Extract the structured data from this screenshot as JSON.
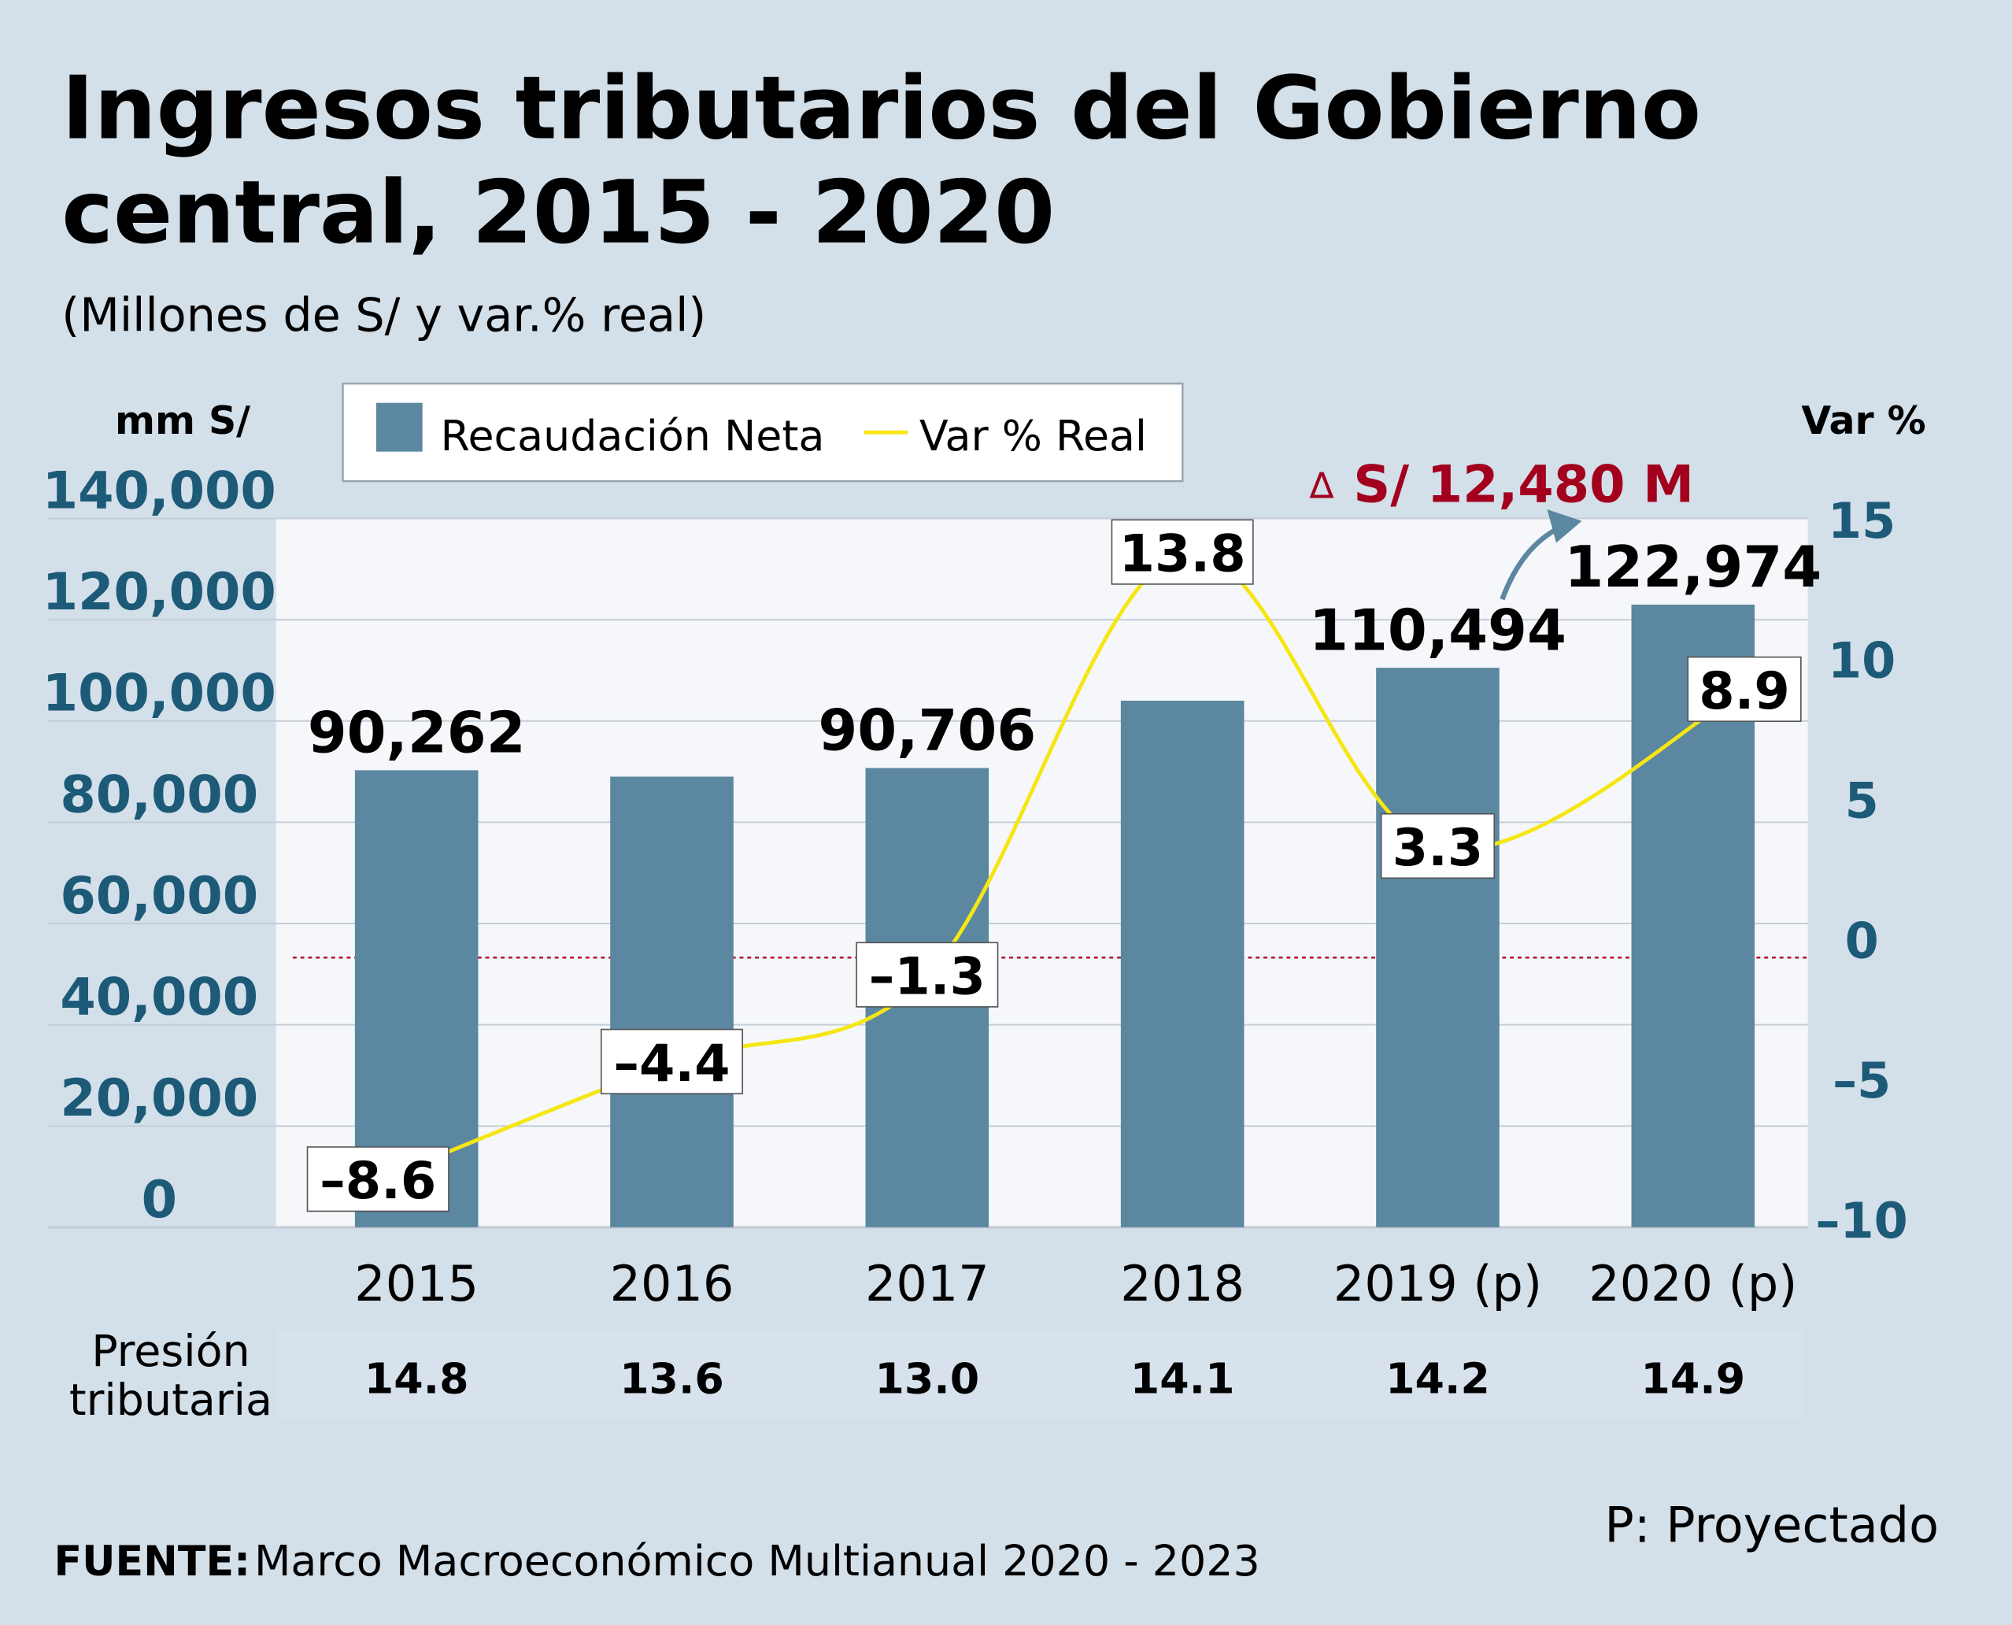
{
  "chart_data": {
    "type": "bar",
    "title": "Ingresos tributarios del Gobierno central, 2015 - 2020",
    "title_lines": [
      "Ingresos tributarios del Gobierno",
      "central, 2015 - 2020"
    ],
    "subtitle": "(Millones de S/ y var.% real)",
    "ylabel_left": "mm S/",
    "ylabel_right": "Var %",
    "categories": [
      "2015",
      "2016",
      "2017",
      "2018",
      "2019 (p)",
      "2020 (p)"
    ],
    "ylim_left": [
      0,
      140000
    ],
    "yticks_left": [
      "0",
      "20,000",
      "40,000",
      "60,000",
      "80,000",
      "100,000",
      "120,000",
      "140,000"
    ],
    "ylim_right": [
      -10,
      15
    ],
    "yticks_right": [
      "-10",
      "-5",
      "0",
      "5",
      "10",
      "15"
    ],
    "grid": true,
    "legend_placement": "top",
    "series": [
      {
        "name": "Recaudación Neta",
        "type": "bar",
        "color": "#5b87a0",
        "values": [
          90262,
          89000,
          90706,
          104000,
          110494,
          122974
        ],
        "data_labels": [
          "90,262",
          "",
          "90,706",
          "",
          "110,494",
          "122,974"
        ]
      },
      {
        "name": "Var % Real",
        "type": "line",
        "color": "#f5e614",
        "values": [
          -8.6,
          -4.4,
          -1.3,
          13.8,
          3.3,
          8.9
        ],
        "data_labels": [
          "-8.6",
          "-4.4",
          "-1.3",
          "13.8",
          "3.3",
          "8.9"
        ]
      }
    ],
    "annotation": {
      "symbol": "∆",
      "text": "S/ 12,480 M",
      "color": "#a3001e"
    },
    "row": {
      "label_lines": [
        "Presión",
        "tributaria"
      ],
      "values": [
        "14.8",
        "13.6",
        "13.0",
        "14.1",
        "14.2",
        "14.9"
      ]
    },
    "note": "P: Proyectado",
    "source_label": "FUENTE:",
    "source": "Marco Macroeconómico Multianual 2020 - 2023",
    "colors": {
      "background": "#d3dfe9",
      "plot": "#f5f7fa",
      "axis_text": "#1c5a78",
      "zero_line": "#b0001e"
    }
  }
}
